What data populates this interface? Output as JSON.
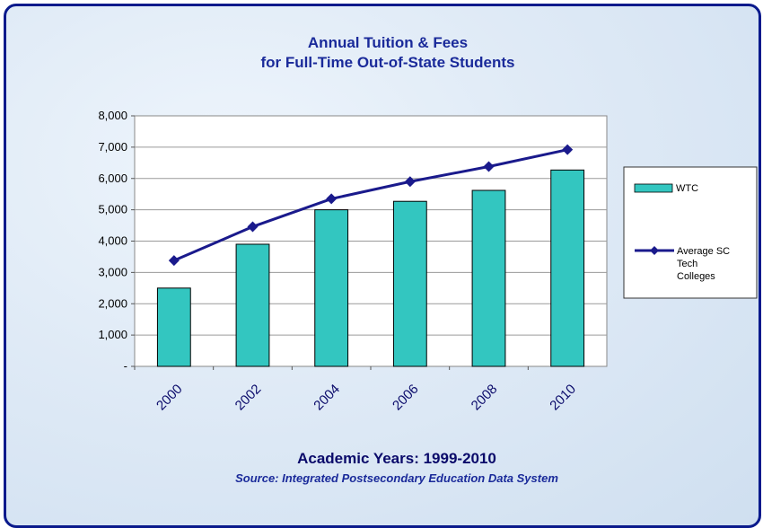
{
  "chart_data": {
    "type": "bar",
    "title_lines": [
      "Annual Tuition & Fees",
      "for Full-Time Out-of-State Students"
    ],
    "categories": [
      "2000",
      "2002",
      "2004",
      "2006",
      "2008",
      "2010"
    ],
    "series": [
      {
        "name": "WTC",
        "kind": "bar",
        "color": "#33c6c0",
        "values": [
          2500,
          3900,
          5000,
          5270,
          5620,
          6270
        ]
      },
      {
        "name": "Average SC Tech Colleges",
        "legend_lines": [
          "Average SC",
          "Tech",
          "Colleges"
        ],
        "kind": "line",
        "color": "#1a1a8c",
        "values": [
          3380,
          4460,
          5350,
          5900,
          6380,
          6920
        ]
      }
    ],
    "ylim": [
      0,
      8000
    ],
    "yticks": [
      {
        "value": 0,
        "label": "-"
      },
      {
        "value": 1000,
        "label": "1,000"
      },
      {
        "value": 2000,
        "label": "2,000"
      },
      {
        "value": 3000,
        "label": "3,000"
      },
      {
        "value": 4000,
        "label": "4,000"
      },
      {
        "value": 5000,
        "label": "5,000"
      },
      {
        "value": 6000,
        "label": "6,000"
      },
      {
        "value": 7000,
        "label": "7,000"
      },
      {
        "value": 8000,
        "label": "8,000"
      }
    ],
    "xlabel": "Academic Years: 1999-2010",
    "source": "Source: Integrated Postsecondary Education Data System",
    "grid": true,
    "legend_position": "right"
  }
}
